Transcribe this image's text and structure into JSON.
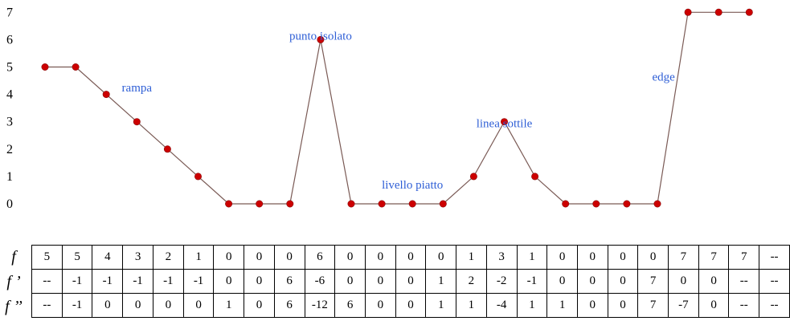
{
  "chart_data": {
    "type": "line",
    "x": [
      0,
      1,
      2,
      3,
      4,
      5,
      6,
      7,
      8,
      9,
      10,
      11,
      12,
      13,
      14,
      15,
      16,
      17,
      18,
      19,
      20,
      21,
      22,
      23
    ],
    "values": [
      5,
      5,
      4,
      3,
      2,
      1,
      0,
      0,
      0,
      6,
      0,
      0,
      0,
      0,
      1,
      3,
      1,
      0,
      0,
      0,
      0,
      7,
      7,
      7
    ],
    "ylim": [
      0,
      7
    ],
    "yticks": [
      "0",
      "1",
      "2",
      "3",
      "4",
      "5",
      "6",
      "7"
    ],
    "line_color": "#7a5a55",
    "marker_color": "#cc0000",
    "annotation_color": "#2f5fd6",
    "annotations": [
      {
        "text": "rampa",
        "x": 3,
        "y": 4.1
      },
      {
        "text": "punto isolato",
        "x": 9,
        "y": 6
      },
      {
        "text": "livello piatto",
        "x": 12,
        "y": 0.55
      },
      {
        "text": "linea sottile",
        "x": 15,
        "y": 2.8
      },
      {
        "text": "edge",
        "x": 20.2,
        "y": 4.5
      }
    ]
  },
  "table": {
    "rows": [
      {
        "label": "f",
        "cells": [
          "5",
          "5",
          "4",
          "3",
          "2",
          "1",
          "0",
          "0",
          "0",
          "6",
          "0",
          "0",
          "0",
          "0",
          "1",
          "3",
          "1",
          "0",
          "0",
          "0",
          "0",
          "7",
          "7",
          "7",
          "--"
        ]
      },
      {
        "label": "f ’",
        "cells": [
          "--",
          "-1",
          "-1",
          "-1",
          "-1",
          "-1",
          "0",
          "0",
          "6",
          "-6",
          "0",
          "0",
          "0",
          "1",
          "2",
          "-2",
          "-1",
          "0",
          "0",
          "0",
          "7",
          "0",
          "0",
          "--",
          "--"
        ]
      },
      {
        "label": "f ’’",
        "cells": [
          "--",
          "-1",
          "0",
          "0",
          "0",
          "0",
          "1",
          "0",
          "6",
          "-12",
          "6",
          "0",
          "0",
          "1",
          "1",
          "-4",
          "1",
          "1",
          "0",
          "0",
          "7",
          "-7",
          "0",
          "--",
          "--"
        ]
      }
    ]
  }
}
